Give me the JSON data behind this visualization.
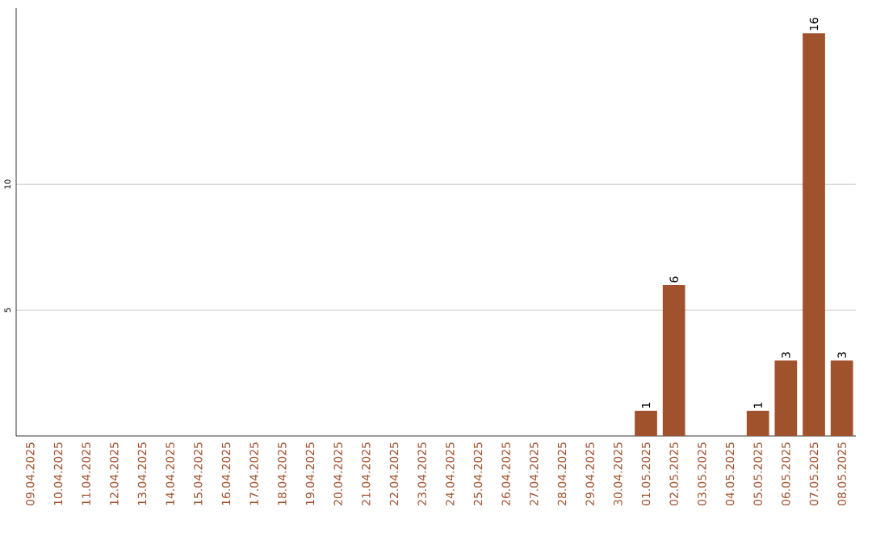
{
  "chart_data": {
    "type": "bar",
    "categories": [
      "09.04.2025",
      "10.04.2025",
      "11.04.2025",
      "12.04.2025",
      "13.04.2025",
      "14.04.2025",
      "15.04.2025",
      "16.04.2025",
      "17.04.2025",
      "18.04.2025",
      "19.04.2025",
      "20.04.2025",
      "21.04.2025",
      "22.04.2025",
      "23.04.2025",
      "24.04.2025",
      "25.04.2025",
      "26.04.2025",
      "27.04.2025",
      "28.04.2025",
      "29.04.2025",
      "30.04.2025",
      "01.05.2025",
      "02.05.2025",
      "03.05.2025",
      "04.05.2025",
      "05.05.2025",
      "06.05.2025",
      "07.05.2025",
      "08.05.2025"
    ],
    "values": [
      0,
      0,
      0,
      0,
      0,
      0,
      0,
      0,
      0,
      0,
      0,
      0,
      0,
      0,
      0,
      0,
      0,
      0,
      0,
      0,
      0,
      0,
      1,
      6,
      0,
      0,
      1,
      3,
      16,
      3
    ],
    "value_labels": [
      null,
      null,
      null,
      null,
      null,
      null,
      null,
      null,
      null,
      null,
      null,
      null,
      null,
      null,
      null,
      null,
      null,
      null,
      null,
      null,
      null,
      null,
      "1",
      "6",
      null,
      null,
      "1",
      "3",
      "16",
      "3"
    ],
    "color": "#a0522d",
    "ylim": [
      0,
      17
    ],
    "yticks": [
      5,
      10
    ],
    "grid": "y"
  }
}
